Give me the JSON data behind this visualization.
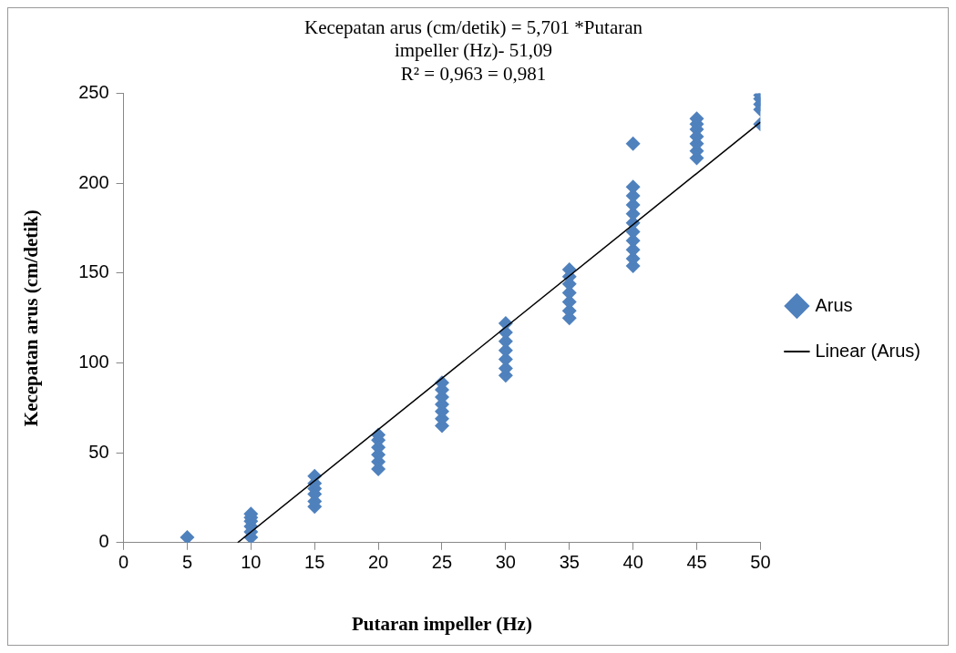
{
  "chart_data": {
    "type": "scatter",
    "title": "Kecepatan arus (cm/detik) = 5,701 *Putaran\nimpeller (Hz)- 51,09\nR² = 0,963 = 0,981",
    "xlabel": "Putaran impeller (Hz)",
    "ylabel": "Kecepatan arus (cm/detik)",
    "xlim": [
      0,
      50
    ],
    "xticks": [
      0,
      5,
      10,
      15,
      20,
      25,
      30,
      35,
      40,
      45,
      50
    ],
    "ylim": [
      0,
      250
    ],
    "yticks": [
      0,
      50,
      100,
      150,
      200,
      250
    ],
    "grid": false,
    "legend": "right",
    "marker": "diamond",
    "series": [
      {
        "name": "Arus",
        "color": "#4f81bd",
        "x": [
          5,
          10,
          10,
          10,
          10,
          10,
          10,
          15,
          15,
          15,
          15,
          15,
          15,
          20,
          20,
          20,
          20,
          20,
          20,
          25,
          25,
          25,
          25,
          25,
          25,
          25,
          30,
          30,
          30,
          30,
          30,
          30,
          30,
          35,
          35,
          35,
          35,
          35,
          35,
          35,
          40,
          40,
          40,
          40,
          40,
          40,
          40,
          40,
          40,
          40,
          40,
          45,
          45,
          45,
          45,
          45,
          45,
          45,
          50,
          50,
          50,
          50,
          50
        ],
        "values": [
          3,
          3,
          6,
          9,
          12,
          14,
          16,
          20,
          23,
          27,
          30,
          33,
          37,
          41,
          45,
          49,
          53,
          57,
          60,
          65,
          69,
          73,
          77,
          81,
          85,
          89,
          93,
          97,
          102,
          107,
          112,
          117,
          122,
          125,
          129,
          134,
          139,
          144,
          148,
          152,
          154,
          158,
          163,
          168,
          173,
          178,
          183,
          188,
          193,
          198,
          222,
          214,
          218,
          222,
          226,
          230,
          233,
          236,
          233,
          241,
          244,
          247,
          249
        ]
      },
      {
        "name": "Linear (Arus)",
        "type": "line",
        "color": "#000000",
        "marker": "none",
        "x": [
          8.96,
          50
        ],
        "values": [
          0,
          234
        ]
      }
    ]
  }
}
